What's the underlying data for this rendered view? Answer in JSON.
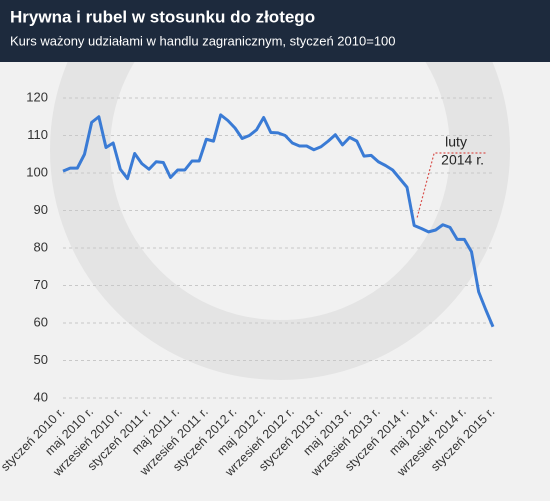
{
  "chart_data": {
    "type": "line",
    "title": "Hrywna i rubel w stosunku do złotego",
    "subtitle": "Kurs ważony udziałami w handlu zagranicznym, styczeń 2010=100",
    "categories": [
      "styczeń 2010 r.",
      null,
      null,
      null,
      "maj 2010 r.",
      null,
      null,
      null,
      "wrzesień 2010 r.",
      null,
      null,
      null,
      "styczeń 2011 r.",
      null,
      null,
      null,
      "maj 2011 r.",
      null,
      null,
      null,
      "wrzesień 2011 r.",
      null,
      null,
      null,
      "styczeń 2012 r.",
      null,
      null,
      null,
      "maj 2012 r.",
      null,
      null,
      null,
      "wrzesień 2012 r.",
      null,
      null,
      null,
      "styczeń 2013 r.",
      null,
      null,
      null,
      "maj 2013 r.",
      null,
      null,
      null,
      "wrzesień 2013 r.",
      null,
      null,
      null,
      "styczeń 2014 r.",
      null,
      null,
      null,
      "maj 2014 r.",
      null,
      null,
      null,
      "wrzesień 2014 r.",
      null,
      null,
      null,
      "styczeń 2015 r."
    ],
    "series": [
      {
        "color": "#3a7bd5",
        "values": [
          100.5,
          101.3,
          101.3,
          105,
          113.5,
          115,
          106.8,
          108,
          101,
          98.5,
          105.2,
          102.5,
          101,
          103,
          102.8,
          98.8,
          100.8,
          100.8,
          103.2,
          103.2,
          109,
          108.5,
          115.5,
          114,
          112,
          109.2,
          110,
          111.5,
          114.8,
          110.8,
          110.7,
          110,
          108,
          107.2,
          107.2,
          106.2,
          107,
          108.5,
          110.2,
          107.5,
          109.5,
          108.5,
          104.5,
          104.7,
          103,
          102,
          100.8,
          98.5,
          96.2,
          86,
          85.2,
          84.3,
          84.8,
          86.2,
          85.5,
          82.3,
          82.3,
          79,
          68.3,
          63.5,
          59
        ]
      }
    ],
    "ylim": [
      40,
      120
    ],
    "yticks": [
      40,
      50,
      60,
      70,
      80,
      90,
      100,
      110,
      120
    ],
    "grid": true,
    "annotation": {
      "lines": [
        "luty",
        "2014 r."
      ],
      "color": "#d9534f"
    }
  }
}
